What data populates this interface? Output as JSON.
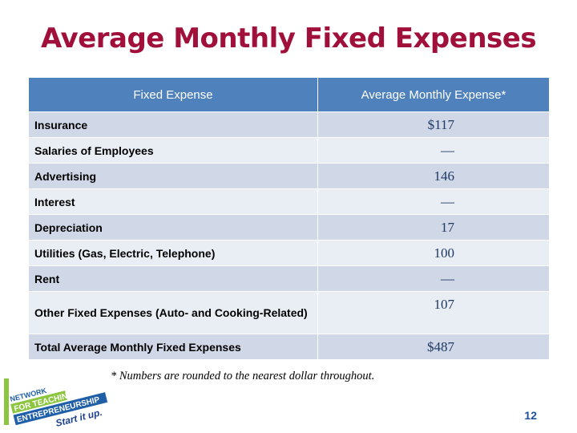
{
  "slide": {
    "title": "Average Monthly Fixed Expenses",
    "footnote": "* Numbers are rounded to the nearest dollar throughout.",
    "page_number": "12"
  },
  "table": {
    "headers": [
      "Fixed Expense",
      "Average Monthly Expense*"
    ],
    "rows": [
      {
        "label": "Insurance",
        "amount": "$117"
      },
      {
        "label": "Salaries of Employees",
        "amount": "—"
      },
      {
        "label": "Advertising",
        "amount": "146"
      },
      {
        "label": "Interest",
        "amount": "—"
      },
      {
        "label": "Depreciation",
        "amount": "17"
      },
      {
        "label": "Utilities (Gas, Electric, Telephone)",
        "amount": "100"
      },
      {
        "label": "Rent",
        "amount": "—"
      },
      {
        "label": "Other Fixed Expenses (Auto- and Cooking-Related)",
        "amount": "107"
      },
      {
        "label": "Total Average Monthly Fixed Expenses",
        "amount": "$487"
      }
    ]
  },
  "logo": {
    "lines": [
      "NETWORK",
      "FOR TEACHING",
      "ENTREPRENEURSHIP"
    ],
    "tagline": "Start it up.",
    "colors": {
      "green": "#8cc63f",
      "blue": "#1f5fa8",
      "navy": "#1b3f8b"
    }
  }
}
